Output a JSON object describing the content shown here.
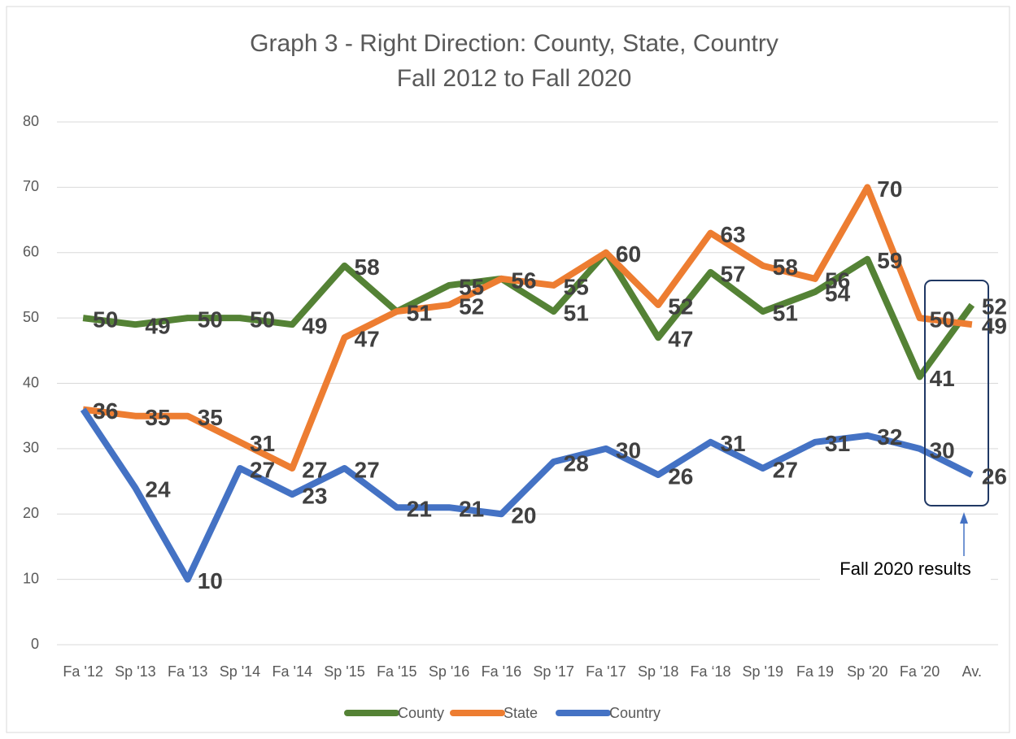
{
  "chart_data": {
    "type": "line",
    "title": "Graph 3 - Right Direction: County, State, Country",
    "subtitle": "Fall 2012 to Fall 2020",
    "categories": [
      "Fa '12",
      "Sp '13",
      "Fa '13",
      "Sp '14",
      "Fa '14",
      "Sp '15",
      "Fa '15",
      "Sp '16",
      "Fa '16",
      "Sp '17",
      "Fa '17",
      "Sp '18",
      "Fa ‘18",
      "Sp '19",
      "Fa 19",
      "Sp '20",
      "Fa '20",
      "Av."
    ],
    "series": [
      {
        "name": "County",
        "color": "#548235",
        "values": [
          50,
          49,
          50,
          50,
          49,
          58,
          51,
          55,
          56,
          51,
          60,
          47,
          57,
          51,
          54,
          59,
          41,
          52
        ]
      },
      {
        "name": "State",
        "color": "#ed7d31",
        "values": [
          36,
          35,
          35,
          31,
          27,
          47,
          51,
          52,
          56,
          55,
          60,
          52,
          63,
          58,
          56,
          70,
          50,
          49
        ]
      },
      {
        "name": "Country",
        "color": "#4472c4",
        "values": [
          36,
          24,
          10,
          27,
          23,
          27,
          21,
          21,
          20,
          28,
          30,
          26,
          31,
          27,
          31,
          32,
          30,
          26
        ]
      }
    ],
    "ylim": [
      0,
      80
    ],
    "yticks": [
      0,
      10,
      20,
      30,
      40,
      50,
      60,
      70,
      80
    ],
    "grid": true,
    "legend": "bottom",
    "annotation": "Fall 2020 results"
  }
}
